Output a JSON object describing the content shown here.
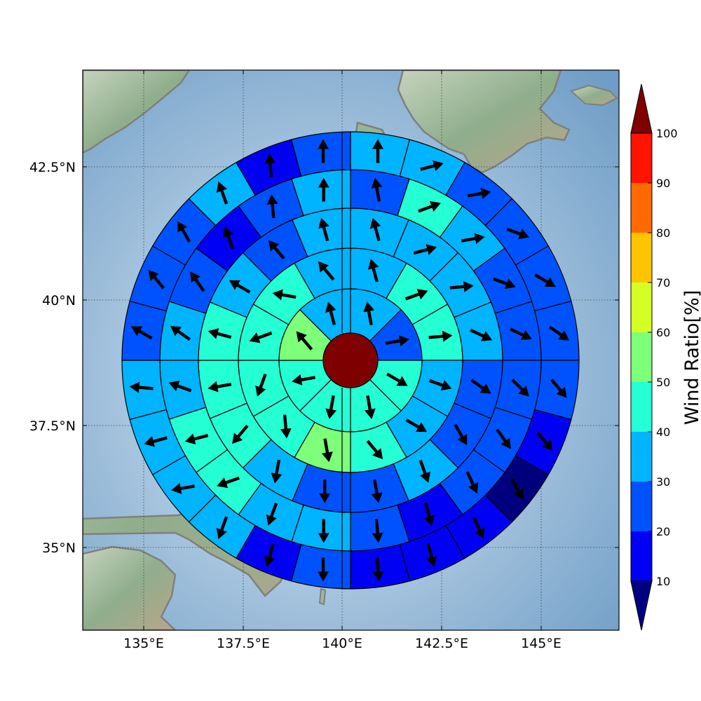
{
  "map": {
    "lon_ticks": [
      "135°E",
      "137.5°E",
      "140°E",
      "142.5°E",
      "145°E"
    ],
    "lat_ticks": [
      "42.5°N",
      "40°N",
      "37.5°N",
      "35°N"
    ],
    "lon_range": [
      133.5,
      147.0
    ],
    "lat_range": [
      33.5,
      44.5
    ],
    "grid": true,
    "coastline_color": "#7f7f7f",
    "ocean_color": "#a9c6df",
    "land_color": "#9fb89a"
  },
  "colorbar": {
    "title": "Wind Ratio[%]",
    "ticks": [
      "10",
      "20",
      "30",
      "40",
      "50",
      "60",
      "70",
      "80",
      "90",
      "100"
    ],
    "bins": [
      {
        "from": 10,
        "to": 20,
        "color": "#0000f4"
      },
      {
        "from": 20,
        "to": 30,
        "color": "#0052ff"
      },
      {
        "from": 30,
        "to": 40,
        "color": "#00b4ff"
      },
      {
        "from": 40,
        "to": 50,
        "color": "#24ffd4"
      },
      {
        "from": 50,
        "to": 60,
        "color": "#7dff7a"
      },
      {
        "from": 60,
        "to": 70,
        "color": "#d4ff24"
      },
      {
        "from": 70,
        "to": 80,
        "color": "#ffc400"
      },
      {
        "from": 80,
        "to": 90,
        "color": "#ff6a00"
      },
      {
        "from": 90,
        "to": 100,
        "color": "#ff1400"
      }
    ],
    "under_color": "#00007f",
    "over_color": "#7f0000",
    "extend": "both"
  },
  "chart_data": {
    "type": "polar-sector-map",
    "center_value": 100,
    "rings": [
      {
        "ring": 1,
        "sectors": [
          35,
          25,
          40,
          40,
          40,
          40,
          50,
          35
        ]
      },
      {
        "ring": 2,
        "sectors": [
          35,
          45,
          45,
          30,
          30,
          40,
          50,
          40,
          45,
          40,
          40,
          35
        ]
      },
      {
        "ring": 3,
        "sectors": [
          35,
          35,
          35,
          30,
          25,
          25,
          30,
          25,
          25,
          35,
          40,
          40,
          40,
          35,
          25,
          35
        ]
      },
      {
        "ring": 4,
        "sectors": [
          25,
          45,
          35,
          25,
          25,
          20,
          20,
          20,
          15,
          20,
          30,
          30,
          40,
          40,
          35,
          35,
          25,
          15,
          25,
          35
        ]
      },
      {
        "ring": 5,
        "sectors": [
          35,
          35,
          25,
          25,
          25,
          25,
          20,
          15,
          5,
          15,
          15,
          15,
          20,
          15,
          35,
          35,
          35,
          30,
          25,
          25,
          20,
          35,
          15,
          25
        ]
      }
    ],
    "wind_direction_deg": {
      "ring1": [
        350,
        80,
        120,
        170,
        190,
        260,
        320,
        345
      ],
      "ring2": [
        345,
        70,
        85,
        110,
        120,
        140,
        170,
        175,
        200,
        250,
        280,
        320
      ],
      "ring3": [
        345,
        75,
        85,
        115,
        125,
        150,
        160,
        170,
        180,
        190,
        220,
        260,
        285,
        300,
        320,
        345
      ],
      "ring4": [
        350,
        70,
        80,
        110,
        115,
        135,
        145,
        155,
        165,
        175,
        180,
        200,
        250,
        255,
        290,
        305,
        325,
        340,
        355,
        360
      ],
      "ring5": [
        360,
        75,
        80,
        110,
        120,
        125,
        140,
        140,
        150,
        155,
        165,
        175,
        180,
        195,
        200,
        260,
        255,
        275,
        300,
        320,
        330,
        340,
        355,
        360
      ]
    }
  }
}
